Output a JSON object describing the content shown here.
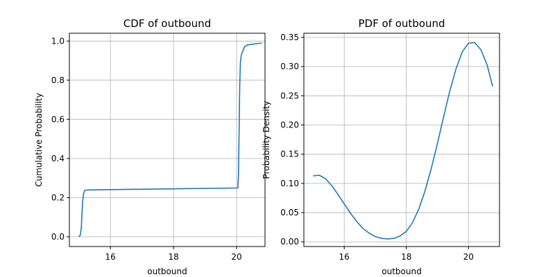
{
  "colors": {
    "line": "#1f77b4",
    "grid": "#b0b0b0",
    "axis": "#000000"
  },
  "chart_data": [
    {
      "type": "line",
      "title": "CDF of outbound",
      "xlabel": "outbound",
      "ylabel": "Cumulative Probability",
      "xlim": [
        14.7,
        20.9
      ],
      "ylim": [
        -0.05,
        1.04
      ],
      "xticks": [
        16,
        18,
        20
      ],
      "xtick_labels": [
        "16",
        "18",
        "20"
      ],
      "yticks": [
        0.0,
        0.2,
        0.4,
        0.6,
        0.8,
        1.0
      ],
      "ytick_labels": [
        "0.0",
        "0.2",
        "0.4",
        "0.6",
        "0.8",
        "1.0"
      ],
      "grid": true,
      "series": [
        {
          "x": [
            15.0,
            15.05,
            15.08,
            15.1,
            15.12,
            15.15,
            15.18,
            15.22,
            15.3,
            16.0,
            18.0,
            20.0,
            20.04,
            20.06,
            20.08,
            20.1,
            20.12,
            20.15,
            20.2,
            20.25,
            20.3,
            20.35,
            20.5,
            20.8
          ],
          "y": [
            0.0,
            0.01,
            0.05,
            0.12,
            0.18,
            0.22,
            0.235,
            0.238,
            0.239,
            0.241,
            0.245,
            0.249,
            0.25,
            0.32,
            0.55,
            0.78,
            0.89,
            0.93,
            0.95,
            0.97,
            0.977,
            0.98,
            0.984,
            0.99
          ]
        }
      ]
    },
    {
      "type": "line",
      "title": "PDF of outbound",
      "xlabel": "outbound",
      "ylabel": "Probability Density",
      "xlim": [
        14.7,
        21.0
      ],
      "ylim": [
        -0.008,
        0.357
      ],
      "xticks": [
        16,
        18,
        20
      ],
      "xtick_labels": [
        "16",
        "18",
        "20"
      ],
      "yticks": [
        0.0,
        0.05,
        0.1,
        0.15,
        0.2,
        0.25,
        0.3,
        0.35
      ],
      "ytick_labels": [
        "0.00",
        "0.05",
        "0.10",
        "0.15",
        "0.20",
        "0.25",
        "0.30",
        "0.35"
      ],
      "grid": true,
      "series": [
        {
          "x": [
            15.0,
            15.2,
            15.4,
            15.6,
            15.8,
            16.0,
            16.2,
            16.4,
            16.6,
            16.8,
            17.0,
            17.2,
            17.4,
            17.6,
            17.8,
            18.0,
            18.2,
            18.4,
            18.6,
            18.8,
            19.0,
            19.2,
            19.4,
            19.6,
            19.8,
            20.0,
            20.2,
            20.4,
            20.6,
            20.78
          ],
          "y": [
            0.113,
            0.114,
            0.108,
            0.096,
            0.081,
            0.065,
            0.049,
            0.035,
            0.023,
            0.015,
            0.009,
            0.006,
            0.005,
            0.006,
            0.01,
            0.018,
            0.033,
            0.056,
            0.087,
            0.125,
            0.168,
            0.214,
            0.258,
            0.296,
            0.325,
            0.34,
            0.341,
            0.329,
            0.303,
            0.266
          ]
        }
      ]
    }
  ]
}
